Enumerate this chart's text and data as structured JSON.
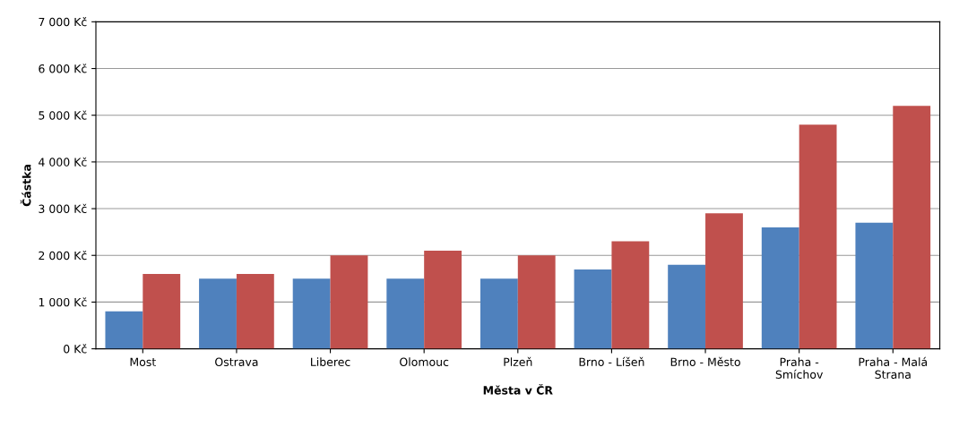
{
  "chart_data": {
    "type": "bar",
    "xlabel": "Města v ČR",
    "ylabel": "Částka",
    "categories": [
      "Most",
      "Ostrava",
      "Liberec",
      "Olomouc",
      "Plzeň",
      "Brno - Líšeň",
      "Brno - Město",
      "Praha - Smíchov",
      "Praha - Malá Strana"
    ],
    "series": [
      {
        "color": "#4f81bd",
        "values": [
          800,
          1500,
          1500,
          1500,
          1500,
          1700,
          1800,
          2600,
          2700
        ]
      },
      {
        "color": "#c0504d",
        "values": [
          1600,
          1600,
          2000,
          2100,
          2000,
          2300,
          2900,
          4800,
          5200
        ]
      }
    ],
    "ylim": [
      0,
      7000
    ],
    "yticks": [
      {
        "value": 0,
        "label": "0 Kč"
      },
      {
        "value": 1000,
        "label": "1 000 Kč"
      },
      {
        "value": 2000,
        "label": "2 000 Kč"
      },
      {
        "value": 3000,
        "label": "3 000 Kč"
      },
      {
        "value": 4000,
        "label": "4 000 Kč"
      },
      {
        "value": 5000,
        "label": "5 000 Kč"
      },
      {
        "value": 6000,
        "label": "6 000 Kč"
      },
      {
        "value": 7000,
        "label": "7 000 Kč"
      }
    ],
    "grid": "y"
  }
}
